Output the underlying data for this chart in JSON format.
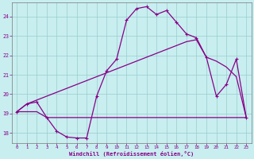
{
  "xlabel": "Windchill (Refroidissement éolien,°C)",
  "bg_color": "#c8eef0",
  "grid_color": "#99cccc",
  "line_color": "#880088",
  "xlim": [
    -0.5,
    23.5
  ],
  "ylim": [
    17.5,
    24.7
  ],
  "yticks": [
    18,
    19,
    20,
    21,
    22,
    23,
    24
  ],
  "xticks": [
    0,
    1,
    2,
    3,
    4,
    5,
    6,
    7,
    8,
    9,
    10,
    11,
    12,
    13,
    14,
    15,
    16,
    17,
    18,
    19,
    20,
    21,
    22,
    23
  ],
  "hours": [
    0,
    1,
    2,
    3,
    4,
    5,
    6,
    7,
    8,
    9,
    10,
    11,
    12,
    13,
    14,
    15,
    16,
    17,
    18,
    19,
    20,
    21,
    22,
    23
  ],
  "line_main": [
    19.1,
    19.5,
    19.6,
    18.8,
    18.1,
    17.8,
    17.75,
    17.75,
    19.9,
    21.2,
    21.8,
    23.8,
    24.4,
    24.5,
    24.1,
    24.3,
    23.7,
    23.1,
    22.9,
    21.9,
    19.9,
    20.5,
    21.8,
    18.8
  ],
  "line_flat": [
    19.1,
    19.1,
    19.1,
    18.8,
    18.8,
    18.8,
    18.8,
    18.8,
    18.8,
    18.8,
    18.8,
    18.8,
    18.8,
    18.8,
    18.8,
    18.8,
    18.8,
    18.8,
    18.8,
    18.8,
    18.8,
    18.8,
    18.8,
    18.8
  ],
  "line_diag": [
    19.1,
    19.5,
    19.7,
    19.9,
    20.1,
    20.3,
    20.5,
    20.7,
    20.9,
    21.1,
    21.3,
    21.5,
    21.7,
    21.9,
    22.1,
    22.3,
    22.5,
    22.7,
    22.8,
    21.9,
    21.7,
    21.4,
    20.9,
    18.8
  ]
}
